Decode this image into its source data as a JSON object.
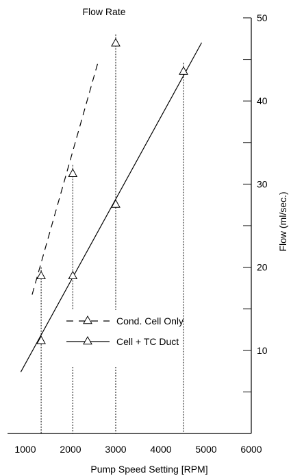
{
  "chart_data": {
    "type": "line",
    "title": "Flow Rate",
    "xlabel": "Pump Speed Setting [RPM]",
    "ylabel": "Flow (ml/sec.)",
    "xlim": [
      1000,
      6000
    ],
    "ylim": [
      0,
      50
    ],
    "x_ticks": [
      "1000",
      "2000",
      "3000",
      "4000",
      "5000",
      "6000"
    ],
    "y_ticks": [
      "10",
      "20",
      "30",
      "40",
      "50"
    ],
    "grid": false,
    "legend_position": "lower-center",
    "series": [
      {
        "name": "Cond. Cell Only",
        "line_style": "dashed",
        "points": [
          {
            "x": 1350,
            "y": 19
          },
          {
            "x": 2050,
            "y": 31.3
          },
          {
            "x": 3000,
            "y": 47
          }
        ],
        "fit": [
          {
            "x": 1150,
            "y": 16.7
          },
          {
            "x": 2600,
            "y": 44.5
          }
        ]
      },
      {
        "name": "Cell + TC Duct",
        "line_style": "solid",
        "points": [
          {
            "x": 1350,
            "y": 11.2
          },
          {
            "x": 2050,
            "y": 19
          },
          {
            "x": 3000,
            "y": 27.6
          },
          {
            "x": 4500,
            "y": 43.6
          }
        ],
        "fit": [
          {
            "x": 900,
            "y": 7.4
          },
          {
            "x": 4900,
            "y": 47
          }
        ]
      }
    ],
    "guide_lines_x": [
      1350,
      2050,
      3000,
      4500
    ]
  }
}
